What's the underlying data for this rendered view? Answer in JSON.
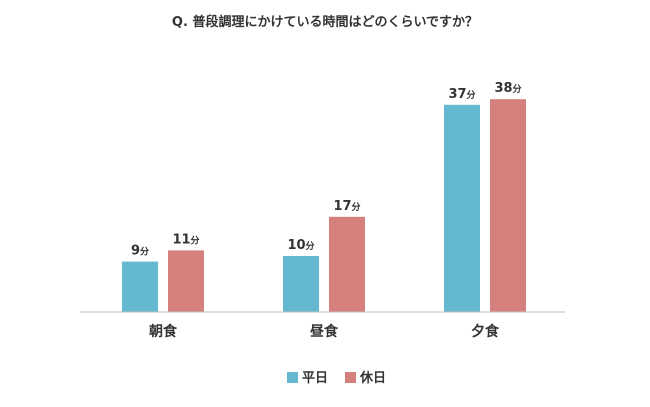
{
  "chart_data": {
    "type": "bar",
    "title": "Q. 普段調理にかけている時間はどのくらいですか？",
    "categories": [
      "朝食",
      "昼食",
      "夕食"
    ],
    "unit": "分",
    "series": [
      {
        "name": "平日",
        "color": "#64b8cf",
        "values": [
          9,
          10,
          37
        ]
      },
      {
        "name": "休日",
        "color": "#d5807c",
        "values": [
          11,
          17,
          38
        ]
      }
    ],
    "xlabel": "",
    "ylabel": "",
    "ylim": [
      0,
      40
    ],
    "grid": false,
    "legend_position": "bottom"
  }
}
